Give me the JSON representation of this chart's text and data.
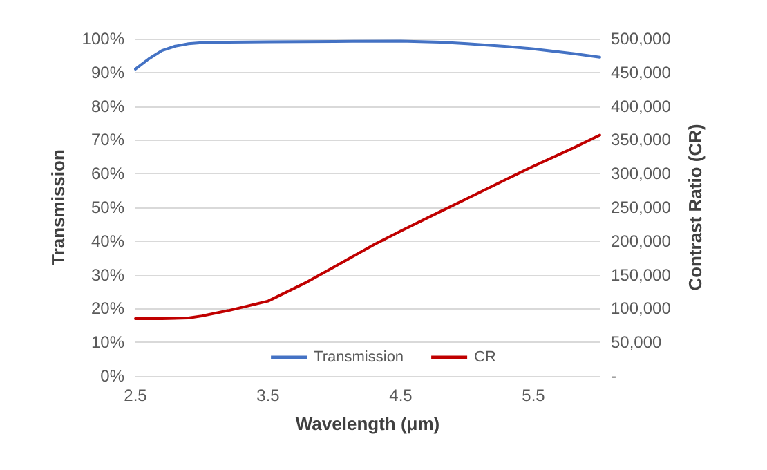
{
  "chart_data": {
    "type": "line",
    "xlabel": "Wavelength (μm)",
    "ylabel": "Transmission",
    "y2label": "Contrast Ratio (CR)",
    "xlim": [
      2.5,
      6.0
    ],
    "xticks": [
      2.5,
      3.5,
      4.5,
      5.5
    ],
    "ylim": [
      0,
      100
    ],
    "yticks": [
      {
        "value": 0,
        "label": "0%"
      },
      {
        "value": 10,
        "label": "10%"
      },
      {
        "value": 20,
        "label": "20%"
      },
      {
        "value": 30,
        "label": "30%"
      },
      {
        "value": 40,
        "label": "40%"
      },
      {
        "value": 50,
        "label": "50%"
      },
      {
        "value": 60,
        "label": "60%"
      },
      {
        "value": 70,
        "label": "70%"
      },
      {
        "value": 80,
        "label": "80%"
      },
      {
        "value": 90,
        "label": "90%"
      },
      {
        "value": 100,
        "label": "100%"
      }
    ],
    "y2lim": [
      0,
      500000
    ],
    "y2ticks": [
      {
        "value": 0,
        "label": "-"
      },
      {
        "value": 50000,
        "label": "50,000"
      },
      {
        "value": 100000,
        "label": "100,000"
      },
      {
        "value": 150000,
        "label": "150,000"
      },
      {
        "value": 200000,
        "label": "200,000"
      },
      {
        "value": 250000,
        "label": "250,000"
      },
      {
        "value": 300000,
        "label": "300,000"
      },
      {
        "value": 350000,
        "label": "350,000"
      },
      {
        "value": 400000,
        "label": "400,000"
      },
      {
        "value": 450000,
        "label": "450,000"
      },
      {
        "value": 500000,
        "label": "500,000"
      }
    ],
    "grid": "y",
    "legend": "bottom",
    "marker": "none",
    "series": [
      {
        "name": "Transmission",
        "color": "#4472c4",
        "x": [
          2.5,
          2.6,
          2.7,
          2.8,
          2.9,
          3.0,
          3.2,
          3.5,
          4.0,
          4.5,
          4.8,
          5.0,
          5.3,
          5.5,
          5.8,
          6.0
        ],
        "values": [
          91,
          94,
          96.5,
          97.8,
          98.5,
          98.8,
          99,
          99.1,
          99.2,
          99.3,
          99,
          98.5,
          97.7,
          97,
          95.6,
          94.5
        ]
      },
      {
        "name": "CR",
        "color": "#c00000",
        "axis": "y2",
        "x": [
          2.5,
          2.7,
          2.9,
          3.0,
          3.2,
          3.5,
          3.8,
          4.0,
          4.3,
          4.5,
          4.8,
          5.0,
          5.3,
          5.5,
          5.8,
          6.0
        ],
        "values": [
          85000,
          85000,
          86000,
          89000,
          97000,
          111000,
          140000,
          162000,
          195000,
          215000,
          244000,
          263000,
          292000,
          311000,
          338000,
          357000
        ]
      }
    ]
  }
}
